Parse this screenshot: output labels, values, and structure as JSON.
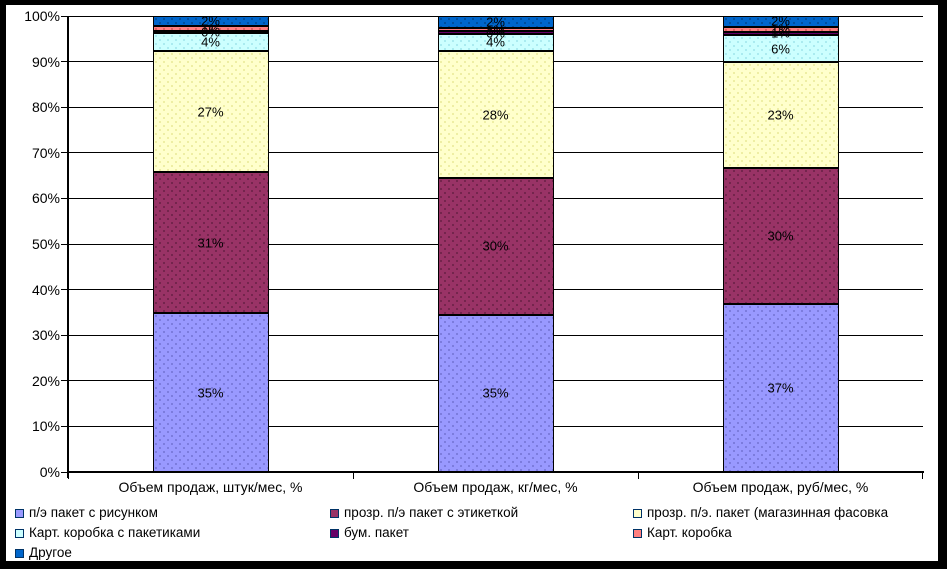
{
  "chart_data": {
    "type": "bar",
    "stacked": true,
    "percent_axis": true,
    "title": "",
    "categories": [
      "Объем продаж, штук/мес, %",
      "Объем продаж, кг/мес, %",
      "Объем продаж, руб/мес, %"
    ],
    "series": [
      {
        "name": "п/э пакет с рисунком",
        "color": "#9999FF",
        "dot_color": "#7777d8",
        "values": [
          35,
          35,
          37
        ],
        "drawn_heights": [
          34.9,
          34.7,
          37.0
        ]
      },
      {
        "name": "прозр. п/э пакет с этикеткой",
        "color": "#993366",
        "dot_color": "#6e2349",
        "values": [
          31,
          30,
          30
        ],
        "drawn_heights": [
          31.0,
          30.2,
          30.0
        ]
      },
      {
        "name": "прозр. п/э. пакет (магазинная фасовка",
        "color": "#FFFFCC",
        "dot_color": "#ebeb9d",
        "values": [
          27,
          28,
          23
        ],
        "drawn_heights": [
          26.7,
          28.0,
          23.2
        ]
      },
      {
        "name": "Карт. коробка с пакетиками",
        "color": "#CCFFFF",
        "dot_color": "#a5e8ee",
        "values": [
          4,
          4,
          6
        ],
        "drawn_heights": [
          3.9,
          3.9,
          6.0
        ]
      },
      {
        "name": "бум. пакет",
        "color": "#660066",
        "dot_color": "#400040",
        "values": [
          0,
          0,
          1
        ],
        "drawn_heights": [
          0.5,
          0.5,
          0.7
        ]
      },
      {
        "name": "Карт. коробка",
        "color": "#FF8080",
        "dot_color": "#d85a5a",
        "values": [
          1,
          1,
          1
        ],
        "drawn_heights": [
          1.0,
          0.8,
          1.1
        ]
      },
      {
        "name": "Другое",
        "color": "#0066CC",
        "dot_color": "#004a97",
        "values": [
          2,
          2,
          2
        ],
        "drawn_heights": [
          2.3,
          2.6,
          2.4
        ]
      }
    ],
    "y_axis": {
      "min": 0,
      "max": 100,
      "step": 10,
      "tick_labels": [
        "0%",
        "10%",
        "20%",
        "30%",
        "40%",
        "50%",
        "60%",
        "70%",
        "80%",
        "90%",
        "100%"
      ]
    },
    "data_label_suffix": "%",
    "grid": true,
    "legend": {
      "position": "bottom",
      "column_offsets": [
        0,
        315,
        618
      ],
      "columns": [
        [
          0,
          3,
          6
        ],
        [
          1,
          4
        ],
        [
          2,
          5
        ]
      ]
    }
  },
  "colors": {
    "frame_background": "#000000",
    "plot_background": "#FFFFFF",
    "gridline": "#000000",
    "text": "#000000"
  }
}
